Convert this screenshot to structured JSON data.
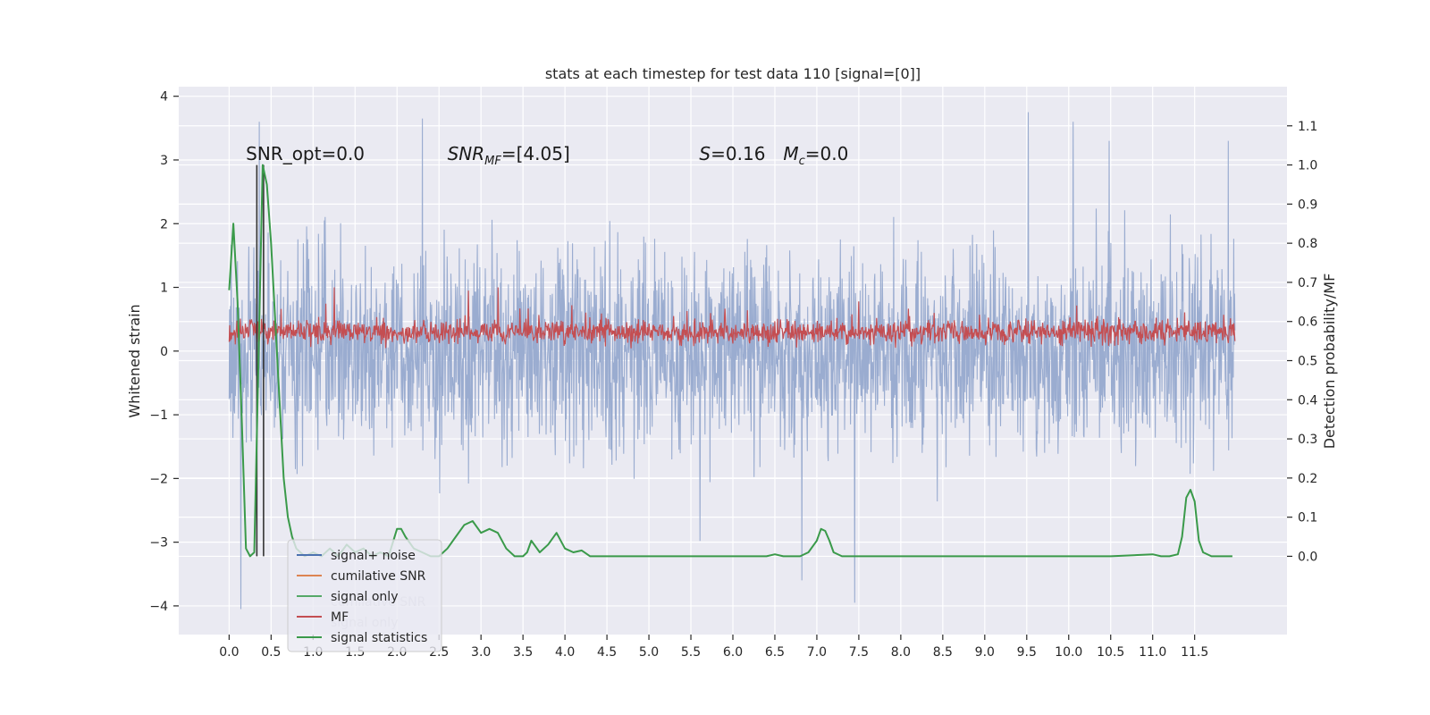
{
  "chart_data": {
    "type": "line",
    "title": "stats at each timestep for test data 110 [signal=[0]]",
    "xlabel": "",
    "ylabel": "Whitened strain",
    "ylabel_right": "Detection probability/MF",
    "xlim": [
      -0.6,
      12.6
    ],
    "ylim": [
      -4.45,
      4.15
    ],
    "ylim_right": [
      -0.2,
      1.2
    ],
    "x_ticks": [
      0.0,
      0.5,
      1.0,
      1.5,
      2.0,
      2.5,
      3.0,
      3.5,
      4.0,
      4.5,
      5.0,
      5.5,
      6.0,
      6.5,
      7.0,
      7.5,
      8.0,
      8.5,
      9.0,
      9.5,
      10.0,
      10.5,
      11.0,
      11.5
    ],
    "x_tick_labels": [
      "0.0",
      "0.5",
      "1.0",
      "1.5",
      "2.0",
      "2.5",
      "3.0",
      "3.5",
      "4.0",
      "4.5",
      "5.0",
      "5.5",
      "6.0",
      "6.5",
      "7.0",
      "7.5",
      "8.0",
      "8.5",
      "9.0",
      "9.5",
      "10.0",
      "10.5",
      "11.0",
      "11.5"
    ],
    "y_ticks": [
      -4,
      -3,
      -2,
      -1,
      0,
      1,
      2,
      3,
      4
    ],
    "y_tick_labels": [
      "−4",
      "−3",
      "−2",
      "−1",
      "0",
      "1",
      "2",
      "3",
      "4"
    ],
    "y_ticks_right": [
      0.0,
      0.1,
      0.2,
      0.3,
      0.4,
      0.5,
      0.6,
      0.7,
      0.8,
      0.9,
      1.0,
      1.1
    ],
    "y_tick_labels_right": [
      "0.0",
      "0.1",
      "0.2",
      "0.3",
      "0.4",
      "0.5",
      "0.6",
      "0.7",
      "0.8",
      "0.9",
      "1.0",
      "1.1"
    ],
    "grid": true,
    "annotations": [
      {
        "text": "SNR_opt=0.0",
        "x": 0.2,
        "y": 3.0
      },
      {
        "text": "SNR_MF=[4.05]",
        "x": 2.6,
        "y": 3.0
      },
      {
        "text": "S=0.16",
        "x": 5.6,
        "y": 3.0
      },
      {
        "text": "M_c=0.0",
        "x": 6.6,
        "y": 3.0
      }
    ],
    "vlines": [
      {
        "x": 0.33,
        "color": "#333333",
        "ymin_right": 0.0,
        "ymax_right": 1.0
      },
      {
        "x": 0.41,
        "color": "#333333",
        "ymin_right": 0.0,
        "ymax_right": 1.0
      }
    ],
    "legend_position": "lower-left",
    "legend": [
      {
        "label": "signal+ noise",
        "color": "#4c72b0"
      },
      {
        "label": "cumilative SNR",
        "color": "#dd8452"
      },
      {
        "label": "signal only",
        "color": "#55a868"
      },
      {
        "label": "MF",
        "color": "#c44e52"
      },
      {
        "label": "signal statistics",
        "color": "#3a9a4a"
      }
    ],
    "ghost_legend": [
      "cumilative SNR",
      "signal only"
    ],
    "series": [
      {
        "name": "signal+ noise",
        "axis": "left",
        "color": "#9aacd0",
        "note": "noise trace over x range, band approx -2.2..2.2 with spikes to about +/-3.8",
        "x_range": [
          0.0,
          11.98
        ],
        "typical_range": [
          -2.2,
          2.2
        ],
        "extremes": [
          {
            "x": 0.14,
            "y": -4.05
          },
          {
            "x": 0.36,
            "y": 3.6
          },
          {
            "x": 2.3,
            "y": 3.65
          },
          {
            "x": 6.82,
            "y": -3.6
          },
          {
            "x": 7.45,
            "y": -3.95
          },
          {
            "x": 9.52,
            "y": 3.75
          },
          {
            "x": 10.05,
            "y": 3.6
          },
          {
            "x": 11.9,
            "y": 3.3
          }
        ]
      },
      {
        "name": "MF",
        "axis": "left",
        "color": "#c44e52",
        "note": "matched-filter output, band approx 0.0..0.6 with peaks to about 1.0",
        "x_range": [
          0.0,
          11.98
        ],
        "typical_range": [
          0.0,
          0.6
        ],
        "peaks": [
          {
            "x": 1.25,
            "y": 1.0
          },
          {
            "x": 3.2,
            "y": 1.0
          },
          {
            "x": 2.85,
            "y": 0.95
          }
        ]
      },
      {
        "name": "signal statistics",
        "axis": "right",
        "color": "#3a9a4a",
        "x": [
          0.0,
          0.05,
          0.1,
          0.15,
          0.2,
          0.25,
          0.3,
          0.35,
          0.4,
          0.45,
          0.5,
          0.55,
          0.6,
          0.65,
          0.7,
          0.75,
          0.8,
          0.9,
          1.0,
          1.1,
          1.2,
          1.3,
          1.4,
          1.5,
          1.6,
          1.7,
          1.8,
          1.9,
          2.0,
          2.05,
          2.1,
          2.2,
          2.3,
          2.4,
          2.5,
          2.6,
          2.7,
          2.8,
          2.9,
          3.0,
          3.1,
          3.2,
          3.3,
          3.4,
          3.5,
          3.55,
          3.6,
          3.7,
          3.8,
          3.9,
          4.0,
          4.1,
          4.2,
          4.3,
          4.4,
          4.5,
          5.0,
          5.5,
          6.0,
          6.2,
          6.4,
          6.5,
          6.6,
          6.7,
          6.8,
          6.9,
          7.0,
          7.05,
          7.1,
          7.15,
          7.2,
          7.3,
          7.5,
          8.0,
          8.5,
          9.0,
          9.5,
          10.0,
          10.5,
          11.0,
          11.1,
          11.2,
          11.3,
          11.35,
          11.4,
          11.45,
          11.5,
          11.55,
          11.6,
          11.7,
          11.8,
          11.9,
          11.95
        ],
        "values": [
          0.68,
          0.85,
          0.65,
          0.35,
          0.02,
          0.0,
          0.01,
          0.5,
          1.0,
          0.95,
          0.8,
          0.6,
          0.4,
          0.2,
          0.1,
          0.05,
          0.02,
          0.0,
          0.01,
          0.0,
          0.02,
          0.0,
          0.03,
          0.01,
          0.02,
          0.0,
          0.01,
          0.0,
          0.07,
          0.07,
          0.05,
          0.02,
          0.01,
          0.0,
          0.0,
          0.02,
          0.05,
          0.08,
          0.09,
          0.06,
          0.07,
          0.06,
          0.02,
          0.0,
          0.0,
          0.01,
          0.04,
          0.01,
          0.03,
          0.06,
          0.02,
          0.01,
          0.015,
          0.0,
          0.0,
          0.0,
          0.0,
          0.0,
          0.0,
          0.0,
          0.0,
          0.005,
          0.0,
          0.0,
          0.0,
          0.01,
          0.04,
          0.07,
          0.065,
          0.04,
          0.01,
          0.0,
          0.0,
          0.0,
          0.0,
          0.0,
          0.0,
          0.0,
          0.0,
          0.005,
          0.0,
          0.0,
          0.005,
          0.05,
          0.15,
          0.17,
          0.14,
          0.04,
          0.01,
          0.0,
          0.0,
          0.0,
          0.0
        ]
      }
    ]
  }
}
